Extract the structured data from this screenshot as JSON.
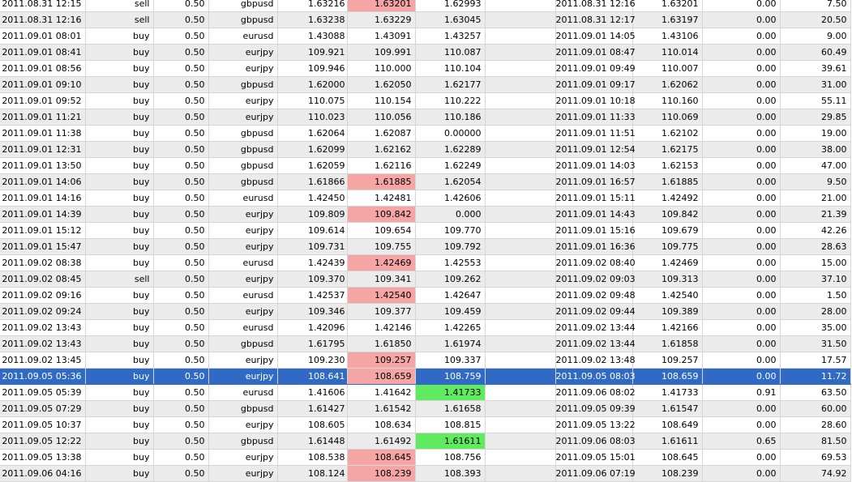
{
  "colors": {
    "row_stripe": "#ebebeb",
    "selected_row": "#316ac5",
    "highlight_red": "#f6a5a5",
    "highlight_green": "#5fea5f",
    "grid_line": "#d6d6d6"
  },
  "selected_row_index": 23,
  "rows": [
    {
      "open_time": "2011.08.31 12:15",
      "type": "sell",
      "size": "0.50",
      "symbol": "gbpusd",
      "price": "1.63216",
      "sl": "1.63201",
      "tp": "1.62993",
      "close_time": "2011.08.31 12:16",
      "close_price": "1.63201",
      "commission": "0.00",
      "profit": "7.50",
      "sl_highlight": "red",
      "tp_highlight": ""
    },
    {
      "open_time": "2011.08.31 12:16",
      "type": "sell",
      "size": "0.50",
      "symbol": "gbpusd",
      "price": "1.63238",
      "sl": "1.63229",
      "tp": "1.63045",
      "close_time": "2011.08.31 12:17",
      "close_price": "1.63197",
      "commission": "0.00",
      "profit": "20.50",
      "sl_highlight": "",
      "tp_highlight": ""
    },
    {
      "open_time": "2011.09.01 08:01",
      "type": "buy",
      "size": "0.50",
      "symbol": "eurusd",
      "price": "1.43088",
      "sl": "1.43091",
      "tp": "1.43257",
      "close_time": "2011.09.01 14:05",
      "close_price": "1.43106",
      "commission": "0.00",
      "profit": "9.00",
      "sl_highlight": "",
      "tp_highlight": ""
    },
    {
      "open_time": "2011.09.01 08:41",
      "type": "buy",
      "size": "0.50",
      "symbol": "eurjpy",
      "price": "109.921",
      "sl": "109.991",
      "tp": "110.087",
      "close_time": "2011.09.01 08:47",
      "close_price": "110.014",
      "commission": "0.00",
      "profit": "60.49",
      "sl_highlight": "",
      "tp_highlight": ""
    },
    {
      "open_time": "2011.09.01 08:56",
      "type": "buy",
      "size": "0.50",
      "symbol": "eurjpy",
      "price": "109.946",
      "sl": "110.000",
      "tp": "110.104",
      "close_time": "2011.09.01 09:49",
      "close_price": "110.007",
      "commission": "0.00",
      "profit": "39.61",
      "sl_highlight": "",
      "tp_highlight": ""
    },
    {
      "open_time": "2011.09.01 09:10",
      "type": "buy",
      "size": "0.50",
      "symbol": "gbpusd",
      "price": "1.62000",
      "sl": "1.62050",
      "tp": "1.62177",
      "close_time": "2011.09.01 09:17",
      "close_price": "1.62062",
      "commission": "0.00",
      "profit": "31.00",
      "sl_highlight": "",
      "tp_highlight": ""
    },
    {
      "open_time": "2011.09.01 09:52",
      "type": "buy",
      "size": "0.50",
      "symbol": "eurjpy",
      "price": "110.075",
      "sl": "110.154",
      "tp": "110.222",
      "close_time": "2011.09.01 10:18",
      "close_price": "110.160",
      "commission": "0.00",
      "profit": "55.11",
      "sl_highlight": "",
      "tp_highlight": ""
    },
    {
      "open_time": "2011.09.01 11:21",
      "type": "buy",
      "size": "0.50",
      "symbol": "eurjpy",
      "price": "110.023",
      "sl": "110.056",
      "tp": "110.186",
      "close_time": "2011.09.01 11:33",
      "close_price": "110.069",
      "commission": "0.00",
      "profit": "29.85",
      "sl_highlight": "",
      "tp_highlight": ""
    },
    {
      "open_time": "2011.09.01 11:38",
      "type": "buy",
      "size": "0.50",
      "symbol": "gbpusd",
      "price": "1.62064",
      "sl": "1.62087",
      "tp": "0.00000",
      "close_time": "2011.09.01 11:51",
      "close_price": "1.62102",
      "commission": "0.00",
      "profit": "19.00",
      "sl_highlight": "",
      "tp_highlight": ""
    },
    {
      "open_time": "2011.09.01 12:31",
      "type": "buy",
      "size": "0.50",
      "symbol": "gbpusd",
      "price": "1.62099",
      "sl": "1.62162",
      "tp": "1.62289",
      "close_time": "2011.09.01 12:54",
      "close_price": "1.62175",
      "commission": "0.00",
      "profit": "38.00",
      "sl_highlight": "",
      "tp_highlight": ""
    },
    {
      "open_time": "2011.09.01 13:50",
      "type": "buy",
      "size": "0.50",
      "symbol": "gbpusd",
      "price": "1.62059",
      "sl": "1.62116",
      "tp": "1.62249",
      "close_time": "2011.09.01 14:03",
      "close_price": "1.62153",
      "commission": "0.00",
      "profit": "47.00",
      "sl_highlight": "",
      "tp_highlight": ""
    },
    {
      "open_time": "2011.09.01 14:06",
      "type": "buy",
      "size": "0.50",
      "symbol": "gbpusd",
      "price": "1.61866",
      "sl": "1.61885",
      "tp": "1.62054",
      "close_time": "2011.09.01 16:57",
      "close_price": "1.61885",
      "commission": "0.00",
      "profit": "9.50",
      "sl_highlight": "red",
      "tp_highlight": ""
    },
    {
      "open_time": "2011.09.01 14:16",
      "type": "buy",
      "size": "0.50",
      "symbol": "eurusd",
      "price": "1.42450",
      "sl": "1.42481",
      "tp": "1.42606",
      "close_time": "2011.09.01 15:11",
      "close_price": "1.42492",
      "commission": "0.00",
      "profit": "21.00",
      "sl_highlight": "",
      "tp_highlight": ""
    },
    {
      "open_time": "2011.09.01 14:39",
      "type": "buy",
      "size": "0.50",
      "symbol": "eurjpy",
      "price": "109.809",
      "sl": "109.842",
      "tp": "0.000",
      "close_time": "2011.09.01 14:43",
      "close_price": "109.842",
      "commission": "0.00",
      "profit": "21.39",
      "sl_highlight": "red",
      "tp_highlight": ""
    },
    {
      "open_time": "2011.09.01 15:12",
      "type": "buy",
      "size": "0.50",
      "symbol": "eurjpy",
      "price": "109.614",
      "sl": "109.654",
      "tp": "109.770",
      "close_time": "2011.09.01 15:16",
      "close_price": "109.679",
      "commission": "0.00",
      "profit": "42.26",
      "sl_highlight": "",
      "tp_highlight": ""
    },
    {
      "open_time": "2011.09.01 15:47",
      "type": "buy",
      "size": "0.50",
      "symbol": "eurjpy",
      "price": "109.731",
      "sl": "109.755",
      "tp": "109.792",
      "close_time": "2011.09.01 16:36",
      "close_price": "109.775",
      "commission": "0.00",
      "profit": "28.63",
      "sl_highlight": "",
      "tp_highlight": ""
    },
    {
      "open_time": "2011.09.02 08:38",
      "type": "buy",
      "size": "0.50",
      "symbol": "eurusd",
      "price": "1.42439",
      "sl": "1.42469",
      "tp": "1.42553",
      "close_time": "2011.09.02 08:40",
      "close_price": "1.42469",
      "commission": "0.00",
      "profit": "15.00",
      "sl_highlight": "red",
      "tp_highlight": ""
    },
    {
      "open_time": "2011.09.02 08:45",
      "type": "sell",
      "size": "0.50",
      "symbol": "eurjpy",
      "price": "109.370",
      "sl": "109.341",
      "tp": "109.262",
      "close_time": "2011.09.02 09:03",
      "close_price": "109.313",
      "commission": "0.00",
      "profit": "37.10",
      "sl_highlight": "",
      "tp_highlight": ""
    },
    {
      "open_time": "2011.09.02 09:16",
      "type": "buy",
      "size": "0.50",
      "symbol": "eurusd",
      "price": "1.42537",
      "sl": "1.42540",
      "tp": "1.42647",
      "close_time": "2011.09.02 09:48",
      "close_price": "1.42540",
      "commission": "0.00",
      "profit": "1.50",
      "sl_highlight": "red",
      "tp_highlight": ""
    },
    {
      "open_time": "2011.09.02 09:24",
      "type": "buy",
      "size": "0.50",
      "symbol": "eurjpy",
      "price": "109.346",
      "sl": "109.377",
      "tp": "109.459",
      "close_time": "2011.09.02 09:44",
      "close_price": "109.389",
      "commission": "0.00",
      "profit": "28.00",
      "sl_highlight": "",
      "tp_highlight": ""
    },
    {
      "open_time": "2011.09.02 13:43",
      "type": "buy",
      "size": "0.50",
      "symbol": "eurusd",
      "price": "1.42096",
      "sl": "1.42146",
      "tp": "1.42265",
      "close_time": "2011.09.02 13:44",
      "close_price": "1.42166",
      "commission": "0.00",
      "profit": "35.00",
      "sl_highlight": "",
      "tp_highlight": ""
    },
    {
      "open_time": "2011.09.02 13:43",
      "type": "buy",
      "size": "0.50",
      "symbol": "gbpusd",
      "price": "1.61795",
      "sl": "1.61850",
      "tp": "1.61974",
      "close_time": "2011.09.02 13:44",
      "close_price": "1.61858",
      "commission": "0.00",
      "profit": "31.50",
      "sl_highlight": "",
      "tp_highlight": ""
    },
    {
      "open_time": "2011.09.02 13:45",
      "type": "buy",
      "size": "0.50",
      "symbol": "eurjpy",
      "price": "109.230",
      "sl": "109.257",
      "tp": "109.337",
      "close_time": "2011.09.02 13:48",
      "close_price": "109.257",
      "commission": "0.00",
      "profit": "17.57",
      "sl_highlight": "red",
      "tp_highlight": ""
    },
    {
      "open_time": "2011.09.05 05:36",
      "type": "buy",
      "size": "0.50",
      "symbol": "eurjpy",
      "price": "108.641",
      "sl": "108.659",
      "tp": "108.759",
      "close_time": "2011.09.05 08:03",
      "close_price": "108.659",
      "commission": "0.00",
      "profit": "11.72",
      "sl_highlight": "red",
      "tp_highlight": ""
    },
    {
      "open_time": "2011.09.05 05:39",
      "type": "buy",
      "size": "0.50",
      "symbol": "eurusd",
      "price": "1.41606",
      "sl": "1.41642",
      "tp": "1.41733",
      "close_time": "2011.09.06 08:02",
      "close_price": "1.41733",
      "commission": "0.91",
      "profit": "63.50",
      "sl_highlight": "",
      "tp_highlight": "green"
    },
    {
      "open_time": "2011.09.05 07:29",
      "type": "buy",
      "size": "0.50",
      "symbol": "gbpusd",
      "price": "1.61427",
      "sl": "1.61542",
      "tp": "1.61658",
      "close_time": "2011.09.05 09:39",
      "close_price": "1.61547",
      "commission": "0.00",
      "profit": "60.00",
      "sl_highlight": "",
      "tp_highlight": ""
    },
    {
      "open_time": "2011.09.05 10:37",
      "type": "buy",
      "size": "0.50",
      "symbol": "eurjpy",
      "price": "108.605",
      "sl": "108.634",
      "tp": "108.815",
      "close_time": "2011.09.05 13:22",
      "close_price": "108.649",
      "commission": "0.00",
      "profit": "28.60",
      "sl_highlight": "",
      "tp_highlight": ""
    },
    {
      "open_time": "2011.09.05 12:22",
      "type": "buy",
      "size": "0.50",
      "symbol": "gbpusd",
      "price": "1.61448",
      "sl": "1.61492",
      "tp": "1.61611",
      "close_time": "2011.09.06 08:03",
      "close_price": "1.61611",
      "commission": "0.65",
      "profit": "81.50",
      "sl_highlight": "",
      "tp_highlight": "green"
    },
    {
      "open_time": "2011.09.05 13:38",
      "type": "buy",
      "size": "0.50",
      "symbol": "eurjpy",
      "price": "108.538",
      "sl": "108.645",
      "tp": "108.756",
      "close_time": "2011.09.05 15:01",
      "close_price": "108.645",
      "commission": "0.00",
      "profit": "69.53",
      "sl_highlight": "red",
      "tp_highlight": ""
    },
    {
      "open_time": "2011.09.06 04:16",
      "type": "buy",
      "size": "0.50",
      "symbol": "eurjpy",
      "price": "108.124",
      "sl": "108.239",
      "tp": "108.393",
      "close_time": "2011.09.06 07:19",
      "close_price": "108.239",
      "commission": "0.00",
      "profit": "74.92",
      "sl_highlight": "red",
      "tp_highlight": ""
    }
  ]
}
